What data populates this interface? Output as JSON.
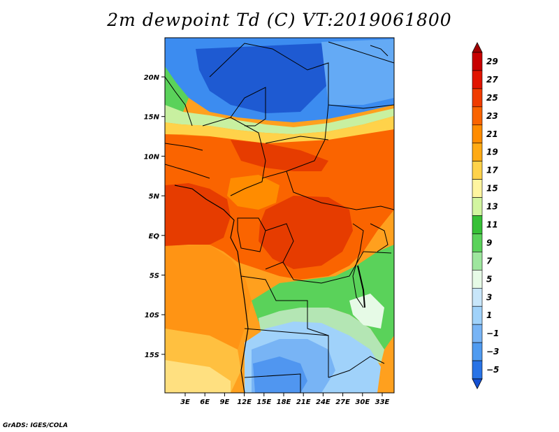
{
  "title": "2m dewpoint Td (C) VT:2019061800",
  "credit": "GrADS: IGES/COLA",
  "map": {
    "lat_ticks": [
      "20N",
      "15N",
      "10N",
      "5N",
      "EQ",
      "5S",
      "10S",
      "15S"
    ],
    "lon_ticks": [
      "3E",
      "6E",
      "9E",
      "12E",
      "15E",
      "18E",
      "21E",
      "24E",
      "27E",
      "30E",
      "33E"
    ]
  },
  "colorbar": {
    "labels": [
      "29",
      "27",
      "25",
      "23",
      "21",
      "19",
      "17",
      "15",
      "13",
      "11",
      "9",
      "7",
      "5",
      "3",
      "1",
      "−1",
      "−3",
      "−5"
    ],
    "colors": [
      "#a00000",
      "#c80000",
      "#e11400",
      "#f03c00",
      "#fa6400",
      "#ff8c00",
      "#ffaa14",
      "#ffd24a",
      "#fff5a0",
      "#d2f5a0",
      "#36c036",
      "#5ad25a",
      "#9ee69e",
      "#e6fae6",
      "#c8e6fa",
      "#a0d2fa",
      "#78b4f5",
      "#509bf0",
      "#2873e6",
      "#1450d2"
    ]
  }
}
